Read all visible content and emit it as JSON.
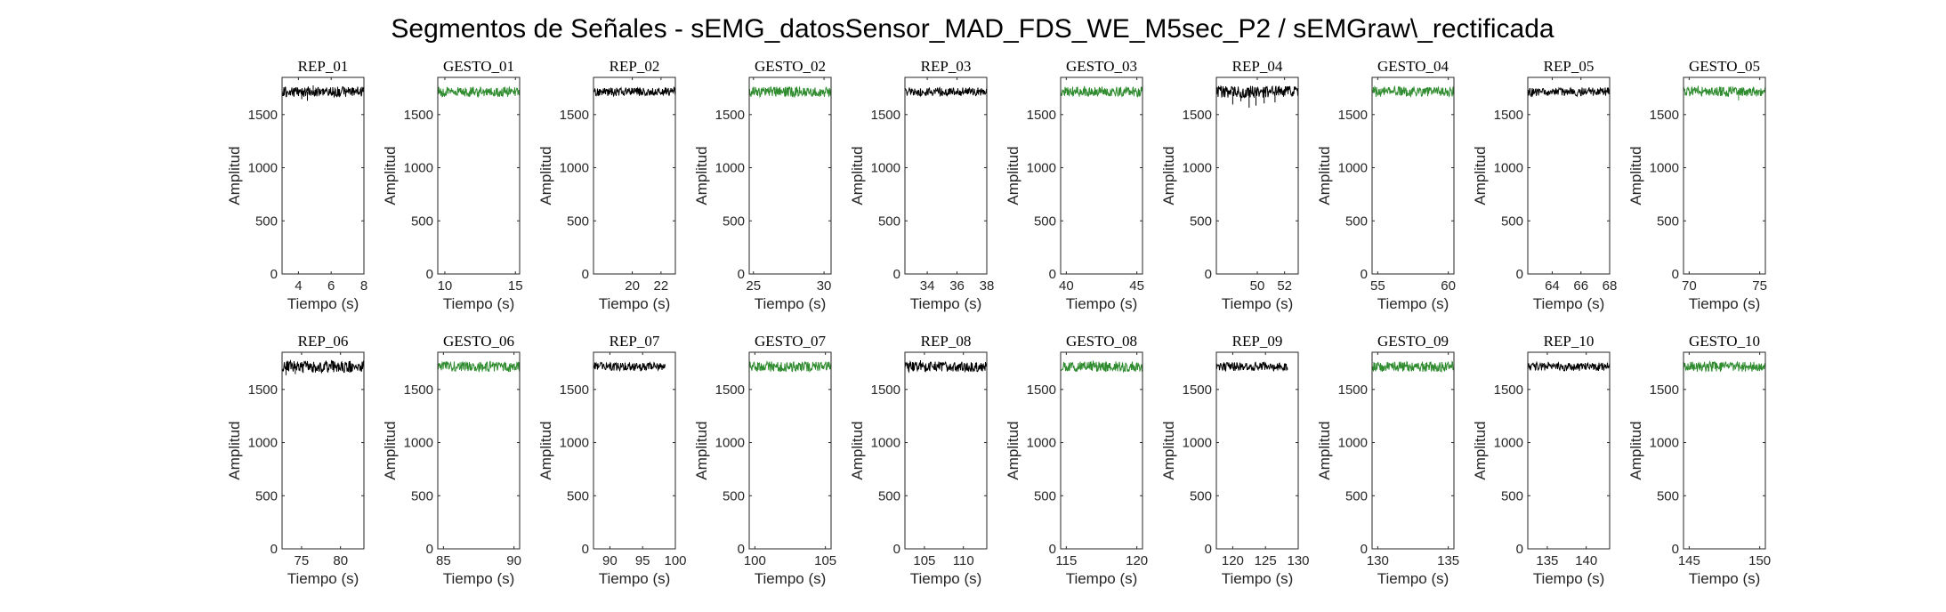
{
  "figure": {
    "title": "Segmentos de Señales - sEMG_datosSensor_MAD_FDS_WE_M5sec_P2 / sEMGraw\\_rectificada"
  },
  "colors": {
    "rep": "#000000",
    "gesto": "#2e8b2e",
    "axis": "#262626"
  },
  "chart_data": [
    {
      "type": "line",
      "title": "REP_01",
      "xlabel": "Tiempo (s)",
      "ylabel": "Amplitud",
      "xlim": [
        3,
        8
      ],
      "xticks": [
        4,
        6,
        8
      ],
      "ylim": [
        0,
        1850
      ],
      "yticks": [
        0,
        500,
        1000,
        1500
      ],
      "series": [
        {
          "color": "#000000",
          "x_range": [
            3,
            8
          ],
          "level": 1715,
          "noise": 12,
          "spikes": [
            {
              "x": 4.2,
              "d": -70
            },
            {
              "x": 4.55,
              "d": -85
            },
            {
              "x": 4.9,
              "d": 60
            }
          ]
        }
      ]
    },
    {
      "type": "line",
      "title": "GESTO_01",
      "xlabel": "Tiempo (s)",
      "ylabel": "Amplitud",
      "xlim": [
        9.5,
        15.3
      ],
      "xticks": [
        10,
        15
      ],
      "ylim": [
        0,
        1850
      ],
      "yticks": [
        0,
        500,
        1000,
        1500
      ],
      "series": [
        {
          "color": "#2e8b2e",
          "x_range": [
            9.5,
            15.3
          ],
          "level": 1715,
          "noise": 12,
          "spikes": []
        }
      ]
    },
    {
      "type": "line",
      "title": "REP_02",
      "xlabel": "Tiempo (s)",
      "ylabel": "Amplitud",
      "xlim": [
        17.3,
        23
      ],
      "xticks": [
        20,
        22
      ],
      "ylim": [
        0,
        1850
      ],
      "yticks": [
        0,
        500,
        1000,
        1500
      ],
      "series": [
        {
          "color": "#000000",
          "x_range": [
            17.3,
            23
          ],
          "level": 1715,
          "noise": 10,
          "spikes": []
        }
      ]
    },
    {
      "type": "line",
      "title": "GESTO_02",
      "xlabel": "Tiempo (s)",
      "ylabel": "Amplitud",
      "xlim": [
        24.7,
        30.5
      ],
      "xticks": [
        25,
        30
      ],
      "ylim": [
        0,
        1850
      ],
      "yticks": [
        0,
        500,
        1000,
        1500
      ],
      "series": [
        {
          "color": "#2e8b2e",
          "x_range": [
            24.7,
            30.5
          ],
          "level": 1715,
          "noise": 12,
          "spikes": []
        }
      ]
    },
    {
      "type": "line",
      "title": "REP_03",
      "xlabel": "Tiempo (s)",
      "ylabel": "Amplitud",
      "xlim": [
        32.5,
        38
      ],
      "xticks": [
        34,
        36,
        38
      ],
      "ylim": [
        0,
        1850
      ],
      "yticks": [
        0,
        500,
        1000,
        1500
      ],
      "series": [
        {
          "color": "#000000",
          "x_range": [
            32.5,
            38
          ],
          "level": 1715,
          "noise": 10,
          "spikes": []
        }
      ]
    },
    {
      "type": "line",
      "title": "GESTO_03",
      "xlabel": "Tiempo (s)",
      "ylabel": "Amplitud",
      "xlim": [
        39.6,
        45.4
      ],
      "xticks": [
        40,
        45
      ],
      "ylim": [
        0,
        1850
      ],
      "yticks": [
        0,
        500,
        1000,
        1500
      ],
      "series": [
        {
          "color": "#2e8b2e",
          "x_range": [
            39.6,
            45.4
          ],
          "level": 1715,
          "noise": 12,
          "spikes": []
        }
      ]
    },
    {
      "type": "line",
      "title": "REP_04",
      "xlabel": "Tiempo (s)",
      "ylabel": "Amplitud",
      "xlim": [
        47,
        53
      ],
      "xticks": [
        50,
        52
      ],
      "ylim": [
        0,
        1850
      ],
      "yticks": [
        0,
        500,
        1000,
        1500
      ],
      "series": [
        {
          "color": "#000000",
          "x_range": [
            47,
            53
          ],
          "level": 1715,
          "noise": 14,
          "spikes": [
            {
              "x": 48.2,
              "d": -120
            },
            {
              "x": 48.8,
              "d": -90
            },
            {
              "x": 49.4,
              "d": -150
            },
            {
              "x": 49.9,
              "d": -130
            },
            {
              "x": 50.5,
              "d": -110
            },
            {
              "x": 51.3,
              "d": -100
            }
          ]
        }
      ]
    },
    {
      "type": "line",
      "title": "GESTO_04",
      "xlabel": "Tiempo (s)",
      "ylabel": "Amplitud",
      "xlim": [
        54.6,
        60.4
      ],
      "xticks": [
        55,
        60
      ],
      "ylim": [
        0,
        1850
      ],
      "yticks": [
        0,
        500,
        1000,
        1500
      ],
      "series": [
        {
          "color": "#2e8b2e",
          "x_range": [
            54.6,
            60.4
          ],
          "level": 1715,
          "noise": 12,
          "spikes": []
        }
      ]
    },
    {
      "type": "line",
      "title": "REP_05",
      "xlabel": "Tiempo (s)",
      "ylabel": "Amplitud",
      "xlim": [
        62.3,
        68
      ],
      "xticks": [
        64,
        66,
        68
      ],
      "ylim": [
        0,
        1850
      ],
      "yticks": [
        0,
        500,
        1000,
        1500
      ],
      "series": [
        {
          "color": "#000000",
          "x_range": [
            62.3,
            68
          ],
          "level": 1715,
          "noise": 10,
          "spikes": [
            {
              "x": 62.6,
              "d": -50
            }
          ]
        }
      ]
    },
    {
      "type": "line",
      "title": "GESTO_05",
      "xlabel": "Tiempo (s)",
      "ylabel": "Amplitud",
      "xlim": [
        69.6,
        75.4
      ],
      "xticks": [
        70,
        75
      ],
      "ylim": [
        0,
        1850
      ],
      "yticks": [
        0,
        500,
        1000,
        1500
      ],
      "series": [
        {
          "color": "#2e8b2e",
          "x_range": [
            69.6,
            75.4
          ],
          "level": 1715,
          "noise": 12,
          "spikes": [
            {
              "x": 73.5,
              "d": -80
            }
          ]
        }
      ]
    },
    {
      "type": "line",
      "title": "REP_06",
      "xlabel": "Tiempo (s)",
      "ylabel": "Amplitud",
      "xlim": [
        72.5,
        83
      ],
      "xticks": [
        75,
        80
      ],
      "ylim": [
        0,
        1850
      ],
      "yticks": [
        0,
        500,
        1000,
        1500
      ],
      "series": [
        {
          "color": "#000000",
          "x_range": [
            72.5,
            83
          ],
          "level": 1715,
          "noise": 14,
          "spikes": [
            {
              "x": 73.0,
              "d": -80
            },
            {
              "x": 74.2,
              "d": -70
            },
            {
              "x": 75.2,
              "d": -60
            }
          ]
        }
      ]
    },
    {
      "type": "line",
      "title": "GESTO_06",
      "xlabel": "Tiempo (s)",
      "ylabel": "Amplitud",
      "xlim": [
        84.6,
        90.4
      ],
      "xticks": [
        85,
        90
      ],
      "ylim": [
        0,
        1850
      ],
      "yticks": [
        0,
        500,
        1000,
        1500
      ],
      "series": [
        {
          "color": "#2e8b2e",
          "x_range": [
            84.6,
            90.4
          ],
          "level": 1715,
          "noise": 12,
          "spikes": []
        }
      ]
    },
    {
      "type": "line",
      "title": "REP_07",
      "xlabel": "Tiempo (s)",
      "ylabel": "Amplitud",
      "xlim": [
        87.5,
        100
      ],
      "xticks": [
        90,
        95,
        100
      ],
      "ylim": [
        0,
        1850
      ],
      "yticks": [
        0,
        500,
        1000,
        1500
      ],
      "series": [
        {
          "color": "#000000",
          "x_range": [
            87.5,
            98.5
          ],
          "level": 1715,
          "noise": 10,
          "spikes": []
        }
      ]
    },
    {
      "type": "line",
      "title": "GESTO_07",
      "xlabel": "Tiempo (s)",
      "ylabel": "Amplitud",
      "xlim": [
        99.6,
        105.4
      ],
      "xticks": [
        100,
        105
      ],
      "ylim": [
        0,
        1850
      ],
      "yticks": [
        0,
        500,
        1000,
        1500
      ],
      "series": [
        {
          "color": "#2e8b2e",
          "x_range": [
            99.6,
            105.4
          ],
          "level": 1715,
          "noise": 12,
          "spikes": []
        }
      ]
    },
    {
      "type": "line",
      "title": "REP_08",
      "xlabel": "Tiempo (s)",
      "ylabel": "Amplitud",
      "xlim": [
        102.5,
        113
      ],
      "xticks": [
        105,
        110
      ],
      "ylim": [
        0,
        1850
      ],
      "yticks": [
        0,
        500,
        1000,
        1500
      ],
      "series": [
        {
          "color": "#000000",
          "x_range": [
            102.5,
            113
          ],
          "level": 1715,
          "noise": 12,
          "spikes": [
            {
              "x": 104.5,
              "d": 60
            }
          ]
        }
      ]
    },
    {
      "type": "line",
      "title": "GESTO_08",
      "xlabel": "Tiempo (s)",
      "ylabel": "Amplitud",
      "xlim": [
        114.6,
        120.4
      ],
      "xticks": [
        115,
        120
      ],
      "ylim": [
        0,
        1850
      ],
      "yticks": [
        0,
        500,
        1000,
        1500
      ],
      "series": [
        {
          "color": "#2e8b2e",
          "x_range": [
            114.6,
            120.4
          ],
          "level": 1715,
          "noise": 12,
          "spikes": []
        }
      ]
    },
    {
      "type": "line",
      "title": "REP_09",
      "xlabel": "Tiempo (s)",
      "ylabel": "Amplitud",
      "xlim": [
        117.5,
        130
      ],
      "xticks": [
        120,
        125,
        130
      ],
      "ylim": [
        0,
        1850
      ],
      "yticks": [
        0,
        500,
        1000,
        1500
      ],
      "series": [
        {
          "color": "#000000",
          "x_range": [
            117.5,
            128.4
          ],
          "level": 1715,
          "noise": 10,
          "spikes": []
        }
      ]
    },
    {
      "type": "line",
      "title": "GESTO_09",
      "xlabel": "Tiempo (s)",
      "ylabel": "Amplitud",
      "xlim": [
        129.6,
        135.4
      ],
      "xticks": [
        130,
        135
      ],
      "ylim": [
        0,
        1850
      ],
      "yticks": [
        0,
        500,
        1000,
        1500
      ],
      "series": [
        {
          "color": "#2e8b2e",
          "x_range": [
            129.6,
            135.4
          ],
          "level": 1715,
          "noise": 12,
          "spikes": []
        }
      ]
    },
    {
      "type": "line",
      "title": "REP_10",
      "xlabel": "Tiempo (s)",
      "ylabel": "Amplitud",
      "xlim": [
        132.5,
        143
      ],
      "xticks": [
        135,
        140
      ],
      "ylim": [
        0,
        1850
      ],
      "yticks": [
        0,
        500,
        1000,
        1500
      ],
      "series": [
        {
          "color": "#000000",
          "x_range": [
            132.5,
            143
          ],
          "level": 1715,
          "noise": 10,
          "spikes": []
        }
      ]
    },
    {
      "type": "line",
      "title": "GESTO_10",
      "xlabel": "Tiempo (s)",
      "ylabel": "Amplitud",
      "xlim": [
        144.6,
        150.4
      ],
      "xticks": [
        145,
        150
      ],
      "ylim": [
        0,
        1850
      ],
      "yticks": [
        0,
        500,
        1000,
        1500
      ],
      "series": [
        {
          "color": "#2e8b2e",
          "x_range": [
            144.6,
            150.4
          ],
          "level": 1715,
          "noise": 12,
          "spikes": []
        }
      ]
    }
  ]
}
